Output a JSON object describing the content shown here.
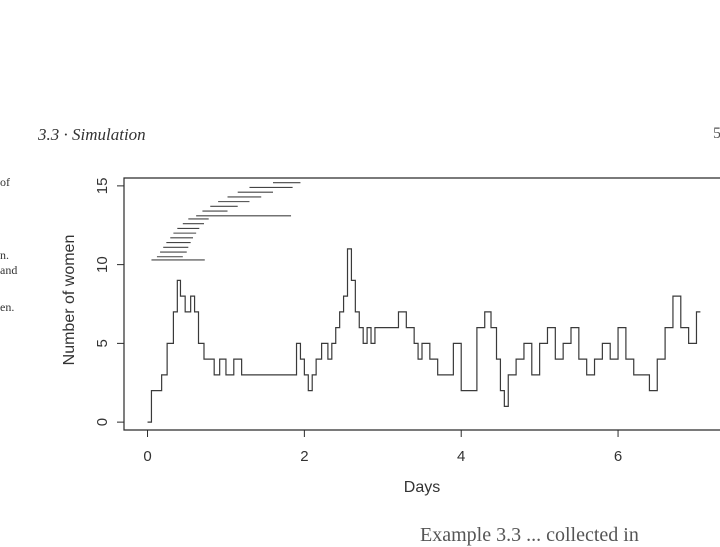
{
  "page": {
    "running_header": "3.3 · Simulation",
    "page_number": "5",
    "margin_fragments": [
      "of",
      "n.",
      "and",
      "en."
    ],
    "bottom_text": "Example 3.3 ... collected in"
  },
  "chart_data": {
    "type": "line",
    "xlabel": "Days",
    "ylabel": "Number of women",
    "xlim": [
      -0.3,
      7.3
    ],
    "ylim": [
      -0.5,
      15.5
    ],
    "xticks": [
      0,
      2,
      4,
      6
    ],
    "yticks": [
      0,
      5,
      10,
      15
    ],
    "grid": false,
    "series": [
      {
        "style": "step",
        "x": [
          0,
          0.05,
          0.18,
          0.25,
          0.33,
          0.38,
          0.42,
          0.48,
          0.55,
          0.6,
          0.65,
          0.72,
          0.78,
          0.85,
          0.92,
          1.0,
          1.1,
          1.2,
          1.3,
          1.4,
          1.5,
          1.6,
          1.7,
          1.8,
          1.9,
          1.95,
          2.0,
          2.05,
          2.1,
          2.15,
          2.22,
          2.3,
          2.35,
          2.4,
          2.45,
          2.5,
          2.55,
          2.6,
          2.65,
          2.7,
          2.75,
          2.8,
          2.85,
          2.9,
          2.95,
          3.0,
          3.1,
          3.2,
          3.3,
          3.4,
          3.45,
          3.5,
          3.6,
          3.7,
          3.8,
          3.9,
          4.0,
          4.1,
          4.2,
          4.3,
          4.38,
          4.45,
          4.5,
          4.55,
          4.6,
          4.7,
          4.8,
          4.9,
          5.0,
          5.1,
          5.2,
          5.3,
          5.4,
          5.5,
          5.6,
          5.7,
          5.8,
          5.9,
          6.0,
          6.1,
          6.2,
          6.3,
          6.4,
          6.5,
          6.6,
          6.7,
          6.8,
          6.9,
          7.0,
          7.05
        ],
        "y": [
          0,
          2,
          3,
          5,
          7,
          9,
          8,
          7,
          8,
          7,
          5,
          4,
          4,
          3,
          4,
          3,
          4,
          3,
          3,
          3,
          3,
          3,
          3,
          3,
          5,
          4,
          3,
          2,
          3,
          4,
          5,
          4,
          5,
          6,
          7,
          8,
          11,
          9,
          7,
          6,
          5,
          6,
          5,
          6,
          6,
          6,
          6,
          7,
          6,
          5,
          4,
          5,
          4,
          3,
          3,
          5,
          2,
          2,
          6,
          7,
          6,
          4,
          2,
          1,
          3,
          4,
          5,
          3,
          5,
          6,
          4,
          5,
          6,
          4,
          3,
          4,
          5,
          4,
          6,
          4,
          3,
          3,
          2,
          4,
          6,
          8,
          6,
          5,
          7,
          7
        ]
      }
    ],
    "segments": [
      {
        "y": 10.3,
        "x": [
          0.05,
          0.73
        ]
      },
      {
        "y": 10.5,
        "x": [
          0.12,
          0.45
        ]
      },
      {
        "y": 10.8,
        "x": [
          0.16,
          0.5
        ]
      },
      {
        "y": 11.1,
        "x": [
          0.2,
          0.52
        ]
      },
      {
        "y": 11.4,
        "x": [
          0.24,
          0.55
        ]
      },
      {
        "y": 11.7,
        "x": [
          0.29,
          0.58
        ]
      },
      {
        "y": 12.0,
        "x": [
          0.33,
          0.62
        ]
      },
      {
        "y": 12.3,
        "x": [
          0.38,
          0.66
        ]
      },
      {
        "y": 12.6,
        "x": [
          0.45,
          0.72
        ]
      },
      {
        "y": 12.9,
        "x": [
          0.52,
          0.78
        ]
      },
      {
        "y": 13.1,
        "x": [
          0.62,
          1.83
        ]
      },
      {
        "y": 13.4,
        "x": [
          0.7,
          1.02
        ]
      },
      {
        "y": 13.7,
        "x": [
          0.8,
          1.15
        ]
      },
      {
        "y": 14.0,
        "x": [
          0.9,
          1.3
        ]
      },
      {
        "y": 14.3,
        "x": [
          1.02,
          1.45
        ]
      },
      {
        "y": 14.6,
        "x": [
          1.15,
          1.6
        ]
      },
      {
        "y": 14.9,
        "x": [
          1.3,
          1.85
        ]
      },
      {
        "y": 15.2,
        "x": [
          1.6,
          1.95
        ]
      }
    ]
  },
  "colors": {
    "ink": "#2a2a2a",
    "series_line": "#3a3a3a",
    "segment_line": "#444444"
  }
}
